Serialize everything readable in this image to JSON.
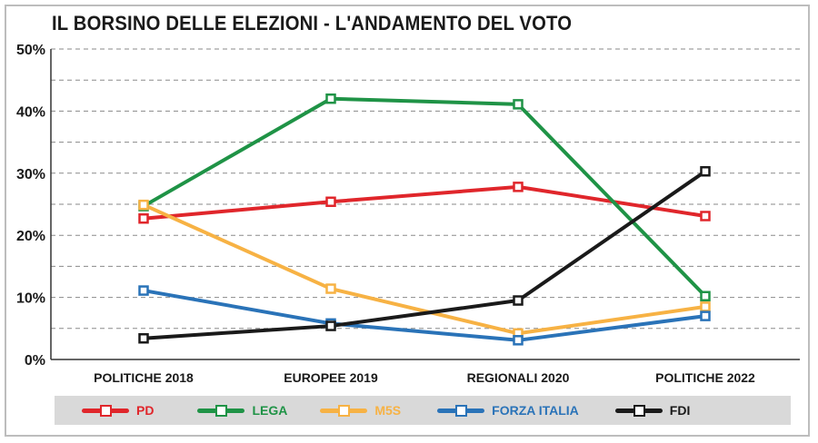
{
  "chart_data": {
    "type": "line",
    "title": "IL BORSINO DELLE ELEZIONI - L'ANDAMENTO DEL VOTO",
    "categories": [
      "POLITICHE 2018",
      "EUROPEE 2019",
      "REGIONALI 2020",
      "POLITICHE 2022"
    ],
    "ylim": [
      0,
      50
    ],
    "yticks": [
      "0%",
      "10%",
      "20%",
      "30%",
      "40%",
      "50%"
    ],
    "grid": true,
    "legend_position": "bottom",
    "series": [
      {
        "name": "PD",
        "color": "#e0262b",
        "values": [
          22.7,
          25.4,
          27.8,
          23.1
        ]
      },
      {
        "name": "LEGA",
        "color": "#1f9346",
        "values": [
          24.7,
          42.0,
          41.1,
          10.2
        ]
      },
      {
        "name": "M5S",
        "color": "#f7b244",
        "values": [
          24.9,
          11.4,
          4.2,
          8.5
        ]
      },
      {
        "name": "FORZA ITALIA",
        "color": "#2a73b8",
        "values": [
          11.1,
          5.8,
          3.1,
          7.0
        ]
      },
      {
        "name": "FDI",
        "color": "#1a1a1a",
        "values": [
          3.4,
          5.4,
          9.5,
          30.3
        ]
      }
    ]
  }
}
